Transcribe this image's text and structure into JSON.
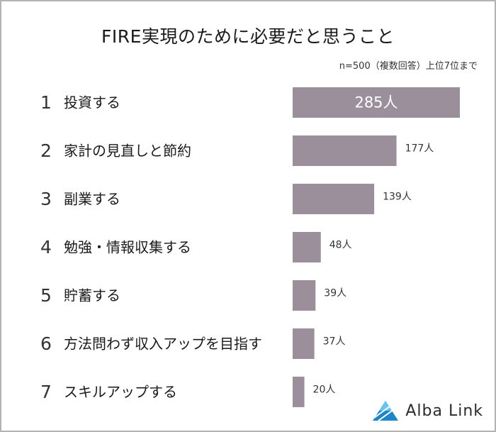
{
  "chart_data": {
    "type": "bar",
    "orientation": "horizontal",
    "title": "FIRE実現のために必要だと思うこと",
    "note": "n=500（複数回答）上位7位まで",
    "ranks": [
      "1",
      "2",
      "3",
      "4",
      "5",
      "6",
      "7"
    ],
    "categories": [
      "投資する",
      "家計の見直しと節約",
      "副業する",
      "勉強・情報収集する",
      "貯蓄する",
      "方法問わず収入アップを目指す",
      "スキルアップする"
    ],
    "values": [
      285,
      177,
      139,
      48,
      39,
      37,
      20
    ],
    "value_labels": [
      "285人",
      "177人",
      "139人",
      "48人",
      "39人",
      "37人",
      "20人"
    ],
    "bar_color": "#9b8f9c",
    "top_label_color": "#ffffff",
    "label_color": "#333333"
  },
  "brand": {
    "name": "Alba Link",
    "icon": "alba-link-logo-icon",
    "color": "#1e86c8"
  }
}
